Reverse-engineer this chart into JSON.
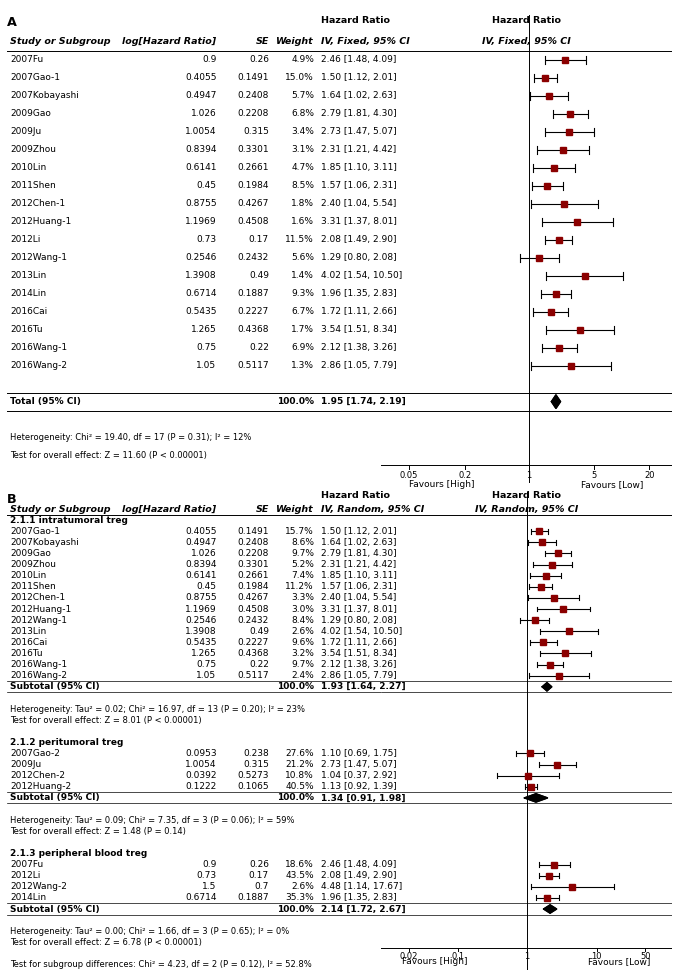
{
  "panel_A": {
    "studies": [
      {
        "name": "2007Fu",
        "loghr": "0.9",
        "se": "0.26",
        "weight": "4.9%",
        "hr": 2.46,
        "ci_lo": 1.48,
        "ci_hi": 4.09,
        "ci_str": "2.46 [1.48, 4.09]"
      },
      {
        "name": "2007Gao-1",
        "loghr": "0.4055",
        "se": "0.1491",
        "weight": "15.0%",
        "hr": 1.5,
        "ci_lo": 1.12,
        "ci_hi": 2.01,
        "ci_str": "1.50 [1.12, 2.01]"
      },
      {
        "name": "2007Kobayashi",
        "loghr": "0.4947",
        "se": "0.2408",
        "weight": "5.7%",
        "hr": 1.64,
        "ci_lo": 1.02,
        "ci_hi": 2.63,
        "ci_str": "1.64 [1.02, 2.63]"
      },
      {
        "name": "2009Gao",
        "loghr": "1.026",
        "se": "0.2208",
        "weight": "6.8%",
        "hr": 2.79,
        "ci_lo": 1.81,
        "ci_hi": 4.3,
        "ci_str": "2.79 [1.81, 4.30]"
      },
      {
        "name": "2009Ju",
        "loghr": "1.0054",
        "se": "0.315",
        "weight": "3.4%",
        "hr": 2.73,
        "ci_lo": 1.47,
        "ci_hi": 5.07,
        "ci_str": "2.73 [1.47, 5.07]"
      },
      {
        "name": "2009Zhou",
        "loghr": "0.8394",
        "se": "0.3301",
        "weight": "3.1%",
        "hr": 2.31,
        "ci_lo": 1.21,
        "ci_hi": 4.42,
        "ci_str": "2.31 [1.21, 4.42]"
      },
      {
        "name": "2010Lin",
        "loghr": "0.6141",
        "se": "0.2661",
        "weight": "4.7%",
        "hr": 1.85,
        "ci_lo": 1.1,
        "ci_hi": 3.11,
        "ci_str": "1.85 [1.10, 3.11]"
      },
      {
        "name": "2011Shen",
        "loghr": "0.45",
        "se": "0.1984",
        "weight": "8.5%",
        "hr": 1.57,
        "ci_lo": 1.06,
        "ci_hi": 2.31,
        "ci_str": "1.57 [1.06, 2.31]"
      },
      {
        "name": "2012Chen-1",
        "loghr": "0.8755",
        "se": "0.4267",
        "weight": "1.8%",
        "hr": 2.4,
        "ci_lo": 1.04,
        "ci_hi": 5.54,
        "ci_str": "2.40 [1.04, 5.54]"
      },
      {
        "name": "2012Huang-1",
        "loghr": "1.1969",
        "se": "0.4508",
        "weight": "1.6%",
        "hr": 3.31,
        "ci_lo": 1.37,
        "ci_hi": 8.01,
        "ci_str": "3.31 [1.37, 8.01]"
      },
      {
        "name": "2012Li",
        "loghr": "0.73",
        "se": "0.17",
        "weight": "11.5%",
        "hr": 2.08,
        "ci_lo": 1.49,
        "ci_hi": 2.9,
        "ci_str": "2.08 [1.49, 2.90]"
      },
      {
        "name": "2012Wang-1",
        "loghr": "0.2546",
        "se": "0.2432",
        "weight": "5.6%",
        "hr": 1.29,
        "ci_lo": 0.8,
        "ci_hi": 2.08,
        "ci_str": "1.29 [0.80, 2.08]"
      },
      {
        "name": "2013Lin",
        "loghr": "1.3908",
        "se": "0.49",
        "weight": "1.4%",
        "hr": 4.02,
        "ci_lo": 1.54,
        "ci_hi": 10.5,
        "ci_str": "4.02 [1.54, 10.50]"
      },
      {
        "name": "2014Lin",
        "loghr": "0.6714",
        "se": "0.1887",
        "weight": "9.3%",
        "hr": 1.96,
        "ci_lo": 1.35,
        "ci_hi": 2.83,
        "ci_str": "1.96 [1.35, 2.83]"
      },
      {
        "name": "2016Cai",
        "loghr": "0.5435",
        "se": "0.2227",
        "weight": "6.7%",
        "hr": 1.72,
        "ci_lo": 1.11,
        "ci_hi": 2.66,
        "ci_str": "1.72 [1.11, 2.66]"
      },
      {
        "name": "2016Tu",
        "loghr": "1.265",
        "se": "0.4368",
        "weight": "1.7%",
        "hr": 3.54,
        "ci_lo": 1.51,
        "ci_hi": 8.34,
        "ci_str": "3.54 [1.51, 8.34]"
      },
      {
        "name": "2016Wang-1",
        "loghr": "0.75",
        "se": "0.22",
        "weight": "6.9%",
        "hr": 2.12,
        "ci_lo": 1.38,
        "ci_hi": 3.26,
        "ci_str": "2.12 [1.38, 3.26]"
      },
      {
        "name": "2016Wang-2",
        "loghr": "1.05",
        "se": "0.5117",
        "weight": "1.3%",
        "hr": 2.86,
        "ci_lo": 1.05,
        "ci_hi": 7.79,
        "ci_str": "2.86 [1.05, 7.79]"
      }
    ],
    "total": {
      "hr": 1.95,
      "ci_lo": 1.74,
      "ci_hi": 2.19,
      "ci_str": "1.95 [1.74, 2.19]",
      "weight": "100.0%"
    },
    "heterogeneity": "Heterogeneity: Chi² = 19.40, df = 17 (P = 0.31); I² = 12%",
    "overall_effect": "Test for overall effect: Z = 11.60 (P < 0.00001)",
    "ci_header": "IV, Fixed, 95% CI",
    "xticks": [
      0.05,
      0.2,
      1,
      5,
      20
    ],
    "xtick_labels": [
      "0.05",
      "0.2",
      "1",
      "5",
      "20"
    ],
    "xlim": [
      0.025,
      35
    ],
    "xlabel_left": "Favours [High]",
    "xlabel_right": "Favours [Low]"
  },
  "panel_B": {
    "ci_header": "IV, Random, 95% CI",
    "subgroups": [
      {
        "name": "2.1.1 intratumoral treg",
        "studies": [
          {
            "name": "2007Gao-1",
            "loghr": "0.4055",
            "se": "0.1491",
            "weight": "15.7%",
            "hr": 1.5,
            "ci_lo": 1.12,
            "ci_hi": 2.01,
            "ci_str": "1.50 [1.12, 2.01]"
          },
          {
            "name": "2007Kobayashi",
            "loghr": "0.4947",
            "se": "0.2408",
            "weight": "8.6%",
            "hr": 1.64,
            "ci_lo": 1.02,
            "ci_hi": 2.63,
            "ci_str": "1.64 [1.02, 2.63]"
          },
          {
            "name": "2009Gao",
            "loghr": "1.026",
            "se": "0.2208",
            "weight": "9.7%",
            "hr": 2.79,
            "ci_lo": 1.81,
            "ci_hi": 4.3,
            "ci_str": "2.79 [1.81, 4.30]"
          },
          {
            "name": "2009Zhou",
            "loghr": "0.8394",
            "se": "0.3301",
            "weight": "5.2%",
            "hr": 2.31,
            "ci_lo": 1.21,
            "ci_hi": 4.42,
            "ci_str": "2.31 [1.21, 4.42]"
          },
          {
            "name": "2010Lin",
            "loghr": "0.6141",
            "se": "0.2661",
            "weight": "7.4%",
            "hr": 1.85,
            "ci_lo": 1.1,
            "ci_hi": 3.11,
            "ci_str": "1.85 [1.10, 3.11]"
          },
          {
            "name": "2011Shen",
            "loghr": "0.45",
            "se": "0.1984",
            "weight": "11.2%",
            "hr": 1.57,
            "ci_lo": 1.06,
            "ci_hi": 2.31,
            "ci_str": "1.57 [1.06, 2.31]"
          },
          {
            "name": "2012Chen-1",
            "loghr": "0.8755",
            "se": "0.4267",
            "weight": "3.3%",
            "hr": 2.4,
            "ci_lo": 1.04,
            "ci_hi": 5.54,
            "ci_str": "2.40 [1.04, 5.54]"
          },
          {
            "name": "2012Huang-1",
            "loghr": "1.1969",
            "se": "0.4508",
            "weight": "3.0%",
            "hr": 3.31,
            "ci_lo": 1.37,
            "ci_hi": 8.01,
            "ci_str": "3.31 [1.37, 8.01]"
          },
          {
            "name": "2012Wang-1",
            "loghr": "0.2546",
            "se": "0.2432",
            "weight": "8.4%",
            "hr": 1.29,
            "ci_lo": 0.8,
            "ci_hi": 2.08,
            "ci_str": "1.29 [0.80, 2.08]"
          },
          {
            "name": "2013Lin",
            "loghr": "1.3908",
            "se": "0.49",
            "weight": "2.6%",
            "hr": 4.02,
            "ci_lo": 1.54,
            "ci_hi": 10.5,
            "ci_str": "4.02 [1.54, 10.50]"
          },
          {
            "name": "2016Cai",
            "loghr": "0.5435",
            "se": "0.2227",
            "weight": "9.6%",
            "hr": 1.72,
            "ci_lo": 1.11,
            "ci_hi": 2.66,
            "ci_str": "1.72 [1.11, 2.66]"
          },
          {
            "name": "2016Tu",
            "loghr": "1.265",
            "se": "0.4368",
            "weight": "3.2%",
            "hr": 3.54,
            "ci_lo": 1.51,
            "ci_hi": 8.34,
            "ci_str": "3.54 [1.51, 8.34]"
          },
          {
            "name": "2016Wang-1",
            "loghr": "0.75",
            "se": "0.22",
            "weight": "9.7%",
            "hr": 2.12,
            "ci_lo": 1.38,
            "ci_hi": 3.26,
            "ci_str": "2.12 [1.38, 3.26]"
          },
          {
            "name": "2016Wang-2",
            "loghr": "1.05",
            "se": "0.5117",
            "weight": "2.4%",
            "hr": 2.86,
            "ci_lo": 1.05,
            "ci_hi": 7.79,
            "ci_str": "2.86 [1.05, 7.79]"
          }
        ],
        "subtotal": {
          "hr": 1.93,
          "ci_lo": 1.64,
          "ci_hi": 2.27,
          "ci_str": "1.93 [1.64, 2.27]",
          "weight": "100.0%"
        },
        "heterogeneity": "Heterogeneity: Tau² = 0.02; Chi² = 16.97, df = 13 (P = 0.20); I² = 23%",
        "overall_effect": "Test for overall effect: Z = 8.01 (P < 0.00001)"
      },
      {
        "name": "2.1.2 peritumoral treg",
        "studies": [
          {
            "name": "2007Gao-2",
            "loghr": "0.0953",
            "se": "0.238",
            "weight": "27.6%",
            "hr": 1.1,
            "ci_lo": 0.69,
            "ci_hi": 1.75,
            "ci_str": "1.10 [0.69, 1.75]"
          },
          {
            "name": "2009Ju",
            "loghr": "1.0054",
            "se": "0.315",
            "weight": "21.2%",
            "hr": 2.73,
            "ci_lo": 1.47,
            "ci_hi": 5.07,
            "ci_str": "2.73 [1.47, 5.07]"
          },
          {
            "name": "2012Chen-2",
            "loghr": "0.0392",
            "se": "0.5273",
            "weight": "10.8%",
            "hr": 1.04,
            "ci_lo": 0.37,
            "ci_hi": 2.92,
            "ci_str": "1.04 [0.37, 2.92]"
          },
          {
            "name": "2012Huang-2",
            "loghr": "0.1222",
            "se": "0.1065",
            "weight": "40.5%",
            "hr": 1.13,
            "ci_lo": 0.92,
            "ci_hi": 1.39,
            "ci_str": "1.13 [0.92, 1.39]"
          }
        ],
        "subtotal": {
          "hr": 1.34,
          "ci_lo": 0.91,
          "ci_hi": 1.98,
          "ci_str": "1.34 [0.91, 1.98]",
          "weight": "100.0%"
        },
        "heterogeneity": "Heterogeneity: Tau² = 0.09; Chi² = 7.35, df = 3 (P = 0.06); I² = 59%",
        "overall_effect": "Test for overall effect: Z = 1.48 (P = 0.14)"
      },
      {
        "name": "2.1.3 peripheral blood treg",
        "studies": [
          {
            "name": "2007Fu",
            "loghr": "0.9",
            "se": "0.26",
            "weight": "18.6%",
            "hr": 2.46,
            "ci_lo": 1.48,
            "ci_hi": 4.09,
            "ci_str": "2.46 [1.48, 4.09]"
          },
          {
            "name": "2012Li",
            "loghr": "0.73",
            "se": "0.17",
            "weight": "43.5%",
            "hr": 2.08,
            "ci_lo": 1.49,
            "ci_hi": 2.9,
            "ci_str": "2.08 [1.49, 2.90]"
          },
          {
            "name": "2012Wang-2",
            "loghr": "1.5",
            "se": "0.7",
            "weight": "2.6%",
            "hr": 4.48,
            "ci_lo": 1.14,
            "ci_hi": 17.67,
            "ci_str": "4.48 [1.14, 17.67]"
          },
          {
            "name": "2014Lin",
            "loghr": "0.6714",
            "se": "0.1887",
            "weight": "35.3%",
            "hr": 1.96,
            "ci_lo": 1.35,
            "ci_hi": 2.83,
            "ci_str": "1.96 [1.35, 2.83]"
          }
        ],
        "subtotal": {
          "hr": 2.14,
          "ci_lo": 1.72,
          "ci_hi": 2.67,
          "ci_str": "2.14 [1.72, 2.67]",
          "weight": "100.0%"
        },
        "heterogeneity": "Heterogeneity: Tau² = 0.00; Chi² = 1.66, df = 3 (P = 0.65); I² = 0%",
        "overall_effect": "Test for overall effect: Z = 6.78 (P < 0.00001)"
      }
    ],
    "xticks": [
      0.02,
      0.1,
      1,
      10,
      50
    ],
    "xtick_labels": [
      "0.02",
      "0.1",
      "1",
      "10",
      "50"
    ],
    "xlim": [
      0.008,
      120
    ],
    "xlabel_left": "Favours [High]",
    "xlabel_right": "Favours [Low]",
    "subgroup_test": "Test for subgroup differences: Chi² = 4.23, df = 2 (P = 0.12), I² = 52.8%"
  },
  "sq_color": "#8B0000",
  "diam_color": "#000000",
  "line_color": "#000000"
}
